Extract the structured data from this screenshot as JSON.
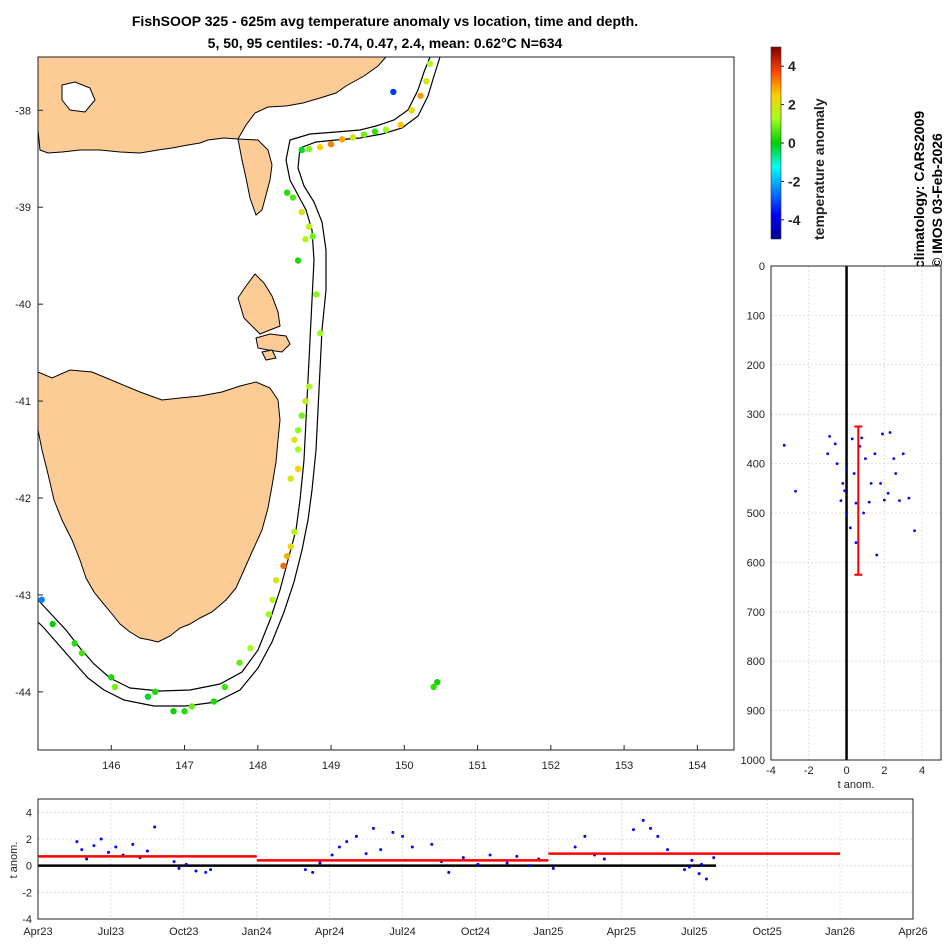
{
  "title_line1": "FishSOOP 325 - 625m avg temperature anomaly vs location, time and depth.",
  "title_line2": "5, 50, 95 centiles: -0.74, 0.47, 2.4, mean: 0.62°C N=634",
  "side_text": {
    "climatology": "climatology: CARS2009",
    "copyright": "© IMOS 03-Feb-2026"
  },
  "colorbar": {
    "label": "temperature anomaly",
    "ticks": [
      "4",
      "2",
      "0",
      "-2",
      "-4"
    ],
    "range": [
      -5,
      5
    ]
  },
  "colors": {
    "marker_blue": "#0000ff",
    "stat_red": "#ff0000",
    "land": "#fdcc96",
    "grid": "#d8d8d8"
  },
  "chart_data": [
    {
      "type": "scatter",
      "name": "map",
      "xlim": [
        145,
        154.5
      ],
      "ylim": [
        -44.6,
        -37.45
      ],
      "xticks": [
        "146",
        "147",
        "148",
        "149",
        "150",
        "151",
        "152",
        "153",
        "154"
      ],
      "yticks": [
        "-38",
        "-39",
        "-40",
        "-41",
        "-42",
        "-43",
        "-44"
      ],
      "colorvar": "temperature anomaly",
      "points_lon_lat_anom": [
        [
          150.35,
          -37.52,
          1.5
        ],
        [
          150.3,
          -37.7,
          2.0
        ],
        [
          150.22,
          -37.85,
          3.0
        ],
        [
          150.1,
          -38.0,
          2.2
        ],
        [
          149.95,
          -38.15,
          2.6
        ],
        [
          149.75,
          -38.2,
          1.2
        ],
        [
          149.6,
          -38.22,
          0.4
        ],
        [
          149.45,
          -38.25,
          0.9
        ],
        [
          149.3,
          -38.28,
          1.8
        ],
        [
          149.15,
          -38.3,
          2.9
        ],
        [
          149.0,
          -38.35,
          3.2
        ],
        [
          148.85,
          -38.38,
          2.5
        ],
        [
          148.7,
          -38.4,
          1.0
        ],
        [
          148.6,
          -38.41,
          -0.2
        ],
        [
          149.85,
          -37.81,
          -3.2
        ],
        [
          148.4,
          -38.85,
          0.3
        ],
        [
          148.48,
          -38.9,
          0.6
        ],
        [
          148.6,
          -39.05,
          2.0
        ],
        [
          148.7,
          -39.2,
          1.6
        ],
        [
          148.75,
          -39.3,
          0.9
        ],
        [
          148.65,
          -39.33,
          1.4
        ],
        [
          148.55,
          -39.55,
          0.2
        ],
        [
          148.8,
          -39.9,
          1.0
        ],
        [
          148.85,
          -40.3,
          1.2
        ],
        [
          148.7,
          -40.85,
          1.4
        ],
        [
          148.65,
          -41.0,
          1.6
        ],
        [
          148.6,
          -41.15,
          0.9
        ],
        [
          148.55,
          -41.3,
          1.1
        ],
        [
          148.5,
          -41.4,
          2.0
        ],
        [
          148.55,
          -41.5,
          1.3
        ],
        [
          148.45,
          -41.8,
          1.9
        ],
        [
          148.55,
          -41.7,
          2.5
        ],
        [
          148.5,
          -42.35,
          1.5
        ],
        [
          148.45,
          -42.5,
          2.2
        ],
        [
          148.4,
          -42.6,
          2.8
        ],
        [
          148.35,
          -42.7,
          3.4
        ],
        [
          148.25,
          -42.85,
          2.0
        ],
        [
          148.2,
          -43.05,
          1.5
        ],
        [
          148.15,
          -43.2,
          1.2
        ],
        [
          147.9,
          -43.55,
          1.3
        ],
        [
          147.75,
          -43.7,
          0.8
        ],
        [
          147.55,
          -43.95,
          0.5
        ],
        [
          147.4,
          -44.1,
          0.2
        ],
        [
          147.1,
          -44.15,
          0.8
        ],
        [
          147.0,
          -44.2,
          0.3
        ],
        [
          146.85,
          -44.2,
          0.1
        ],
        [
          146.6,
          -44.0,
          0.2
        ],
        [
          146.5,
          -44.05,
          -0.2
        ],
        [
          146.05,
          -43.95,
          0.9
        ],
        [
          146.0,
          -43.85,
          0.2
        ],
        [
          145.6,
          -43.6,
          0.5
        ],
        [
          145.5,
          -43.5,
          0.3
        ],
        [
          145.2,
          -43.3,
          0.0
        ],
        [
          145.05,
          -43.05,
          -2.5
        ],
        [
          150.4,
          -43.95,
          0.4
        ],
        [
          150.45,
          -43.9,
          0.1
        ]
      ]
    },
    {
      "type": "scatter",
      "name": "depth-profile",
      "xlabel": "t anom.",
      "xlim": [
        -4,
        5
      ],
      "ylim": [
        0,
        1000
      ],
      "xticks": [
        "-4",
        "-2",
        "0",
        "2",
        "4"
      ],
      "yticks": [
        "0",
        "100",
        "200",
        "300",
        "400",
        "500",
        "600",
        "700",
        "800",
        "900",
        "1000"
      ],
      "stats": {
        "p5": -0.74,
        "median": 0.47,
        "p95": 2.4,
        "mean": 0.62,
        "depth_top": 325,
        "depth_bottom": 625
      },
      "points_anom_depth": [
        [
          -3.3,
          363
        ],
        [
          -2.7,
          456
        ],
        [
          3.6,
          536
        ],
        [
          1.6,
          585
        ],
        [
          0.3,
          350
        ],
        [
          0.8,
          348
        ],
        [
          1.9,
          340
        ],
        [
          2.3,
          337
        ],
        [
          -0.9,
          345
        ],
        [
          -1.0,
          380
        ],
        [
          -0.5,
          400
        ],
        [
          0.0,
          410
        ],
        [
          0.4,
          420
        ],
        [
          1.0,
          390
        ],
        [
          1.5,
          380
        ],
        [
          2.6,
          420
        ],
        [
          3.3,
          470
        ],
        [
          2.8,
          475
        ],
        [
          -0.3,
          475
        ],
        [
          0.5,
          480
        ],
        [
          1.2,
          478
        ],
        [
          2.0,
          474
        ],
        [
          0.0,
          500
        ],
        [
          0.2,
          530
        ],
        [
          0.5,
          560
        ],
        [
          -0.2,
          440
        ],
        [
          1.8,
          440
        ],
        [
          2.5,
          390
        ],
        [
          3.0,
          380
        ],
        [
          -0.6,
          360
        ],
        [
          0.7,
          365
        ],
        [
          1.3,
          440
        ],
        [
          -0.1,
          455
        ],
        [
          0.9,
          500
        ],
        [
          2.2,
          460
        ]
      ]
    },
    {
      "type": "scatter",
      "name": "time-series",
      "ylabel": "t anom.",
      "ylim": [
        -4,
        5
      ],
      "xticks": [
        "Apr23",
        "Jul23",
        "Oct23",
        "Jan24",
        "Apr24",
        "Jul24",
        "Oct24",
        "Jan25",
        "Apr25",
        "Jul25",
        "Oct25",
        "Jan26",
        "Apr26"
      ],
      "yticks": [
        "4",
        "2",
        "0",
        "-2",
        "-4"
      ],
      "period_means": [
        {
          "from": "Apr23",
          "to": "Jan24",
          "mean": 0.7
        },
        {
          "from": "Jan24",
          "to": "Jan25",
          "mean": 0.4
        },
        {
          "from": "Jan25",
          "to": "Jan26",
          "mean": 0.9
        }
      ],
      "points_month_anom": [
        [
          1.6,
          1.8
        ],
        [
          1.8,
          1.2
        ],
        [
          2.0,
          0.5
        ],
        [
          2.3,
          1.5
        ],
        [
          2.6,
          2.0
        ],
        [
          2.9,
          1.0
        ],
        [
          3.2,
          1.4
        ],
        [
          3.5,
          0.8
        ],
        [
          3.9,
          1.6
        ],
        [
          4.2,
          0.6
        ],
        [
          4.5,
          1.1
        ],
        [
          4.8,
          2.9
        ],
        [
          5.6,
          0.3
        ],
        [
          5.8,
          -0.2
        ],
        [
          6.1,
          0.1
        ],
        [
          6.5,
          -0.4
        ],
        [
          6.9,
          -0.5
        ],
        [
          7.1,
          -0.3
        ],
        [
          11.0,
          -0.3
        ],
        [
          11.3,
          -0.5
        ],
        [
          11.6,
          0.2
        ],
        [
          12.1,
          0.8
        ],
        [
          12.4,
          1.4
        ],
        [
          12.7,
          1.8
        ],
        [
          13.1,
          2.2
        ],
        [
          13.5,
          0.9
        ],
        [
          13.8,
          2.8
        ],
        [
          14.1,
          1.2
        ],
        [
          14.6,
          2.5
        ],
        [
          15.0,
          2.2
        ],
        [
          15.4,
          1.4
        ],
        [
          16.2,
          1.6
        ],
        [
          16.6,
          0.3
        ],
        [
          16.9,
          -0.5
        ],
        [
          17.5,
          0.6
        ],
        [
          18.1,
          0.1
        ],
        [
          18.6,
          0.8
        ],
        [
          19.3,
          0.2
        ],
        [
          19.7,
          0.7
        ],
        [
          20.2,
          0.0
        ],
        [
          20.6,
          0.5
        ],
        [
          21.2,
          -0.2
        ],
        [
          22.1,
          1.4
        ],
        [
          22.5,
          2.2
        ],
        [
          22.9,
          0.8
        ],
        [
          23.3,
          0.5
        ],
        [
          24.5,
          2.7
        ],
        [
          24.9,
          3.4
        ],
        [
          25.2,
          2.8
        ],
        [
          25.5,
          2.2
        ],
        [
          25.9,
          1.2
        ],
        [
          26.6,
          -0.3
        ],
        [
          26.9,
          0.4
        ],
        [
          27.2,
          -0.6
        ],
        [
          27.5,
          -1.0
        ],
        [
          27.8,
          0.6
        ],
        [
          27.3,
          0.1
        ],
        [
          26.8,
          -0.1
        ]
      ]
    }
  ]
}
